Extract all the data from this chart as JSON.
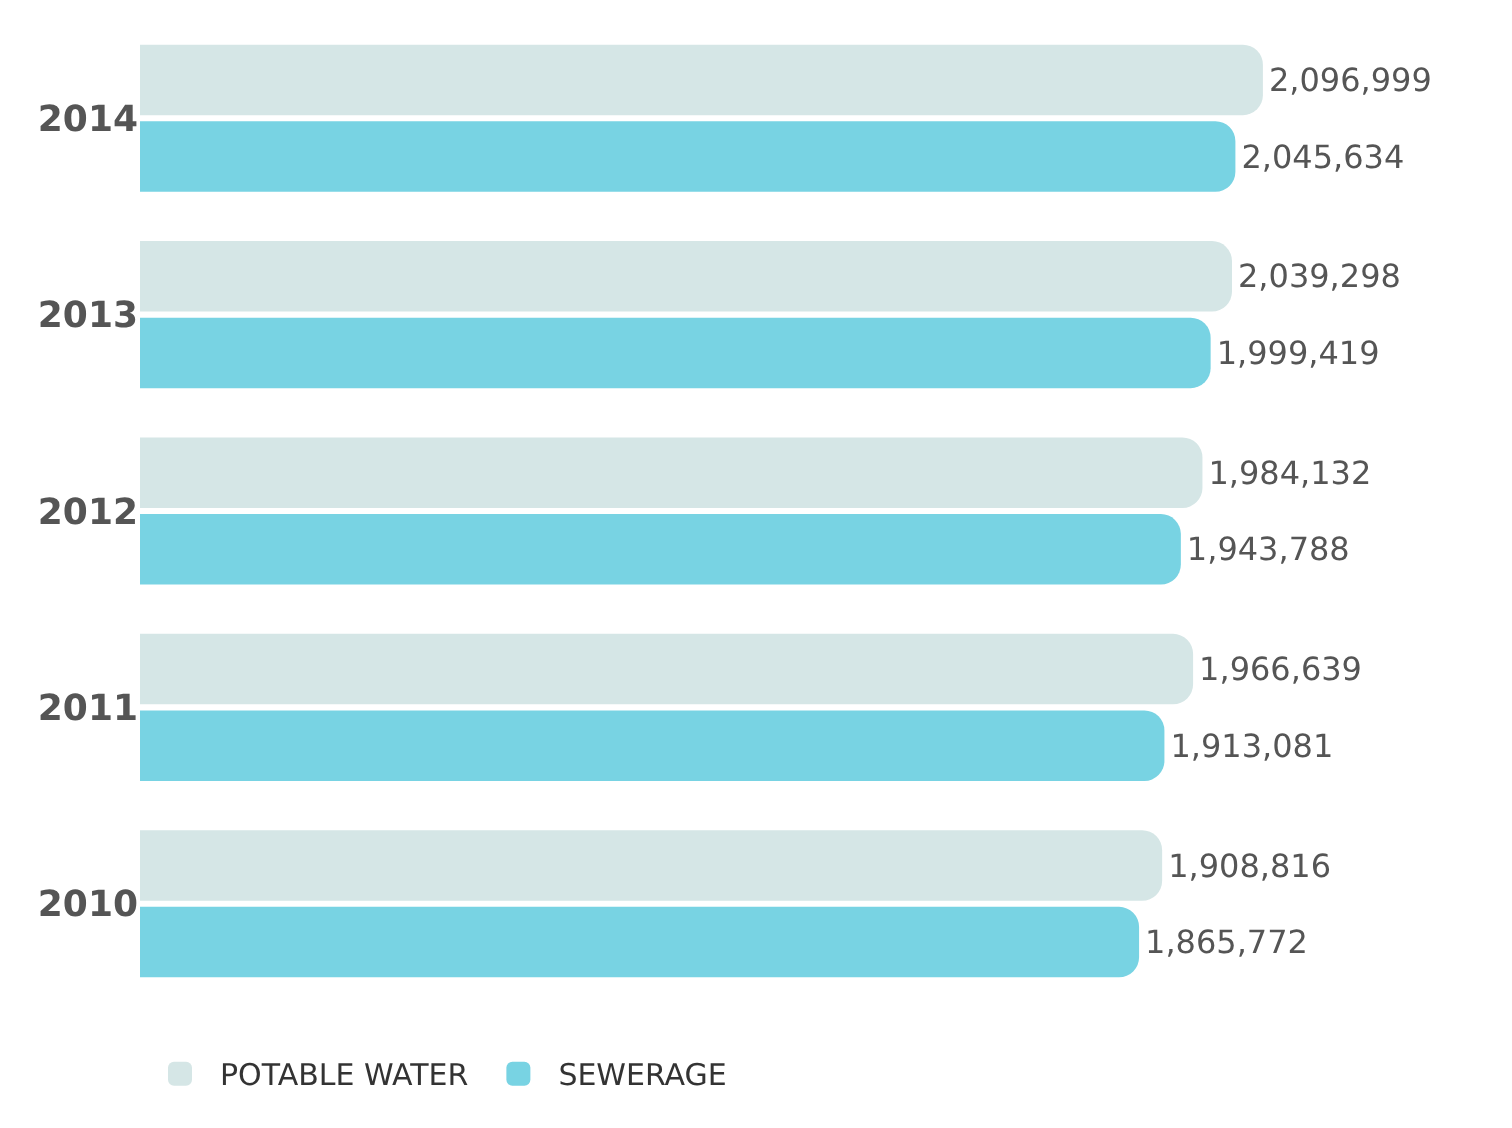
{
  "chart_data": {
    "type": "bar",
    "orientation": "horizontal",
    "categories": [
      "2014",
      "2013",
      "2012",
      "2011",
      "2010"
    ],
    "series": [
      {
        "name": "POTABLE WATER",
        "color": "#d5e6e6",
        "values": [
          2096999,
          2039298,
          1984132,
          1966639,
          1908816
        ],
        "value_labels": [
          "2,096,999",
          "2,039,298",
          "1,984,132",
          "1,966,639",
          "1,908,816"
        ]
      },
      {
        "name": "SEWERAGE",
        "color": "#78d3e3",
        "values": [
          2045634,
          1999419,
          1943788,
          1913081,
          1865772
        ],
        "value_labels": [
          "2,045,634",
          "1,999,419",
          "1,943,788",
          "1,913,081",
          "1,865,772"
        ]
      }
    ],
    "legend": "bottom left",
    "grid": false
  }
}
